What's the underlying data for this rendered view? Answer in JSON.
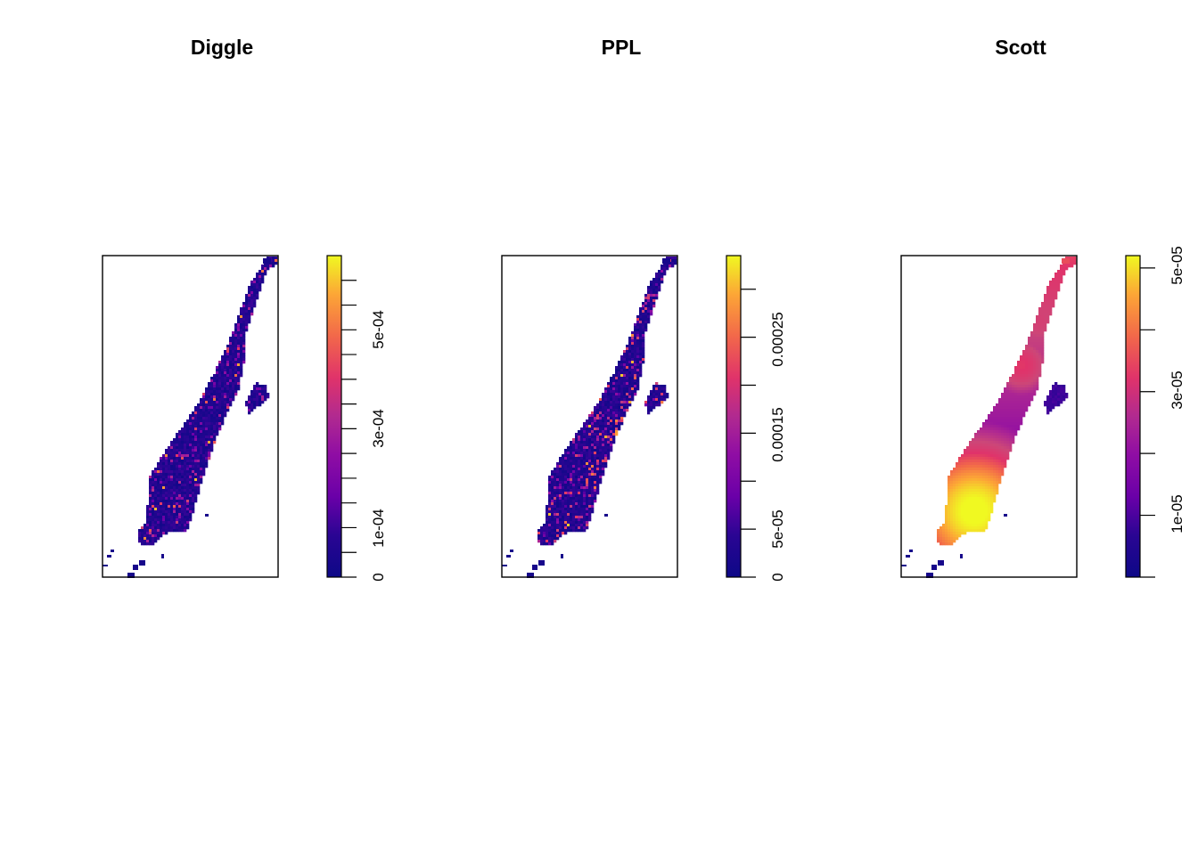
{
  "chart_data": [
    {
      "type": "heatmap",
      "title": "Diggle",
      "xlabel": "",
      "ylabel": "",
      "colorbar": {
        "range": [
          0,
          0.00065
        ],
        "ticks": [
          0,
          5e-05,
          0.0001,
          0.00015,
          0.0002,
          0.00025,
          0.0003,
          0.00035,
          0.0004,
          0.00045,
          0.0005,
          0.00055,
          0.0006
        ],
        "tick_labels": [
          {
            "value": 0,
            "label": "0"
          },
          {
            "value": 0.0001,
            "label": "1e-04"
          },
          {
            "value": 0.0003,
            "label": "3e-04"
          },
          {
            "value": 0.0005,
            "label": "5e-04"
          }
        ]
      },
      "pattern": "speckled",
      "hotspots": []
    },
    {
      "type": "heatmap",
      "title": "PPL",
      "xlabel": "",
      "ylabel": "",
      "colorbar": {
        "range": [
          0,
          0.000335
        ],
        "ticks": [
          0,
          5e-05,
          0.0001,
          0.00015,
          0.0002,
          0.00025,
          0.0003
        ],
        "tick_labels": [
          {
            "value": 0,
            "label": "0"
          },
          {
            "value": 5e-05,
            "label": "5e-05"
          },
          {
            "value": 0.00015,
            "label": "0.00015"
          },
          {
            "value": 0.00025,
            "label": "0.00025"
          }
        ]
      },
      "pattern": "speckled",
      "hotspots": []
    },
    {
      "type": "heatmap",
      "title": "Scott",
      "xlabel": "",
      "ylabel": "",
      "colorbar": {
        "range": [
          0,
          5.2e-05
        ],
        "ticks": [
          0,
          1e-05,
          2e-05,
          3e-05,
          4e-05,
          5e-05
        ],
        "tick_labels": [
          {
            "value": 1e-05,
            "label": "1e-05"
          },
          {
            "value": 3e-05,
            "label": "3e-05"
          },
          {
            "value": 5e-05,
            "label": "5e-05"
          }
        ]
      },
      "pattern": "smooth",
      "hotspots": [
        {
          "location": "lower-left",
          "level": 1.0
        },
        {
          "location": "middle",
          "level": 0.75
        },
        {
          "location": "upper",
          "level": 0.8
        }
      ]
    }
  ],
  "colors": {
    "palette_low": "#0d0887",
    "palette_mid": "#cc4778",
    "palette_high": "#f0f921",
    "axis": "#000000",
    "background": "#ffffff"
  }
}
